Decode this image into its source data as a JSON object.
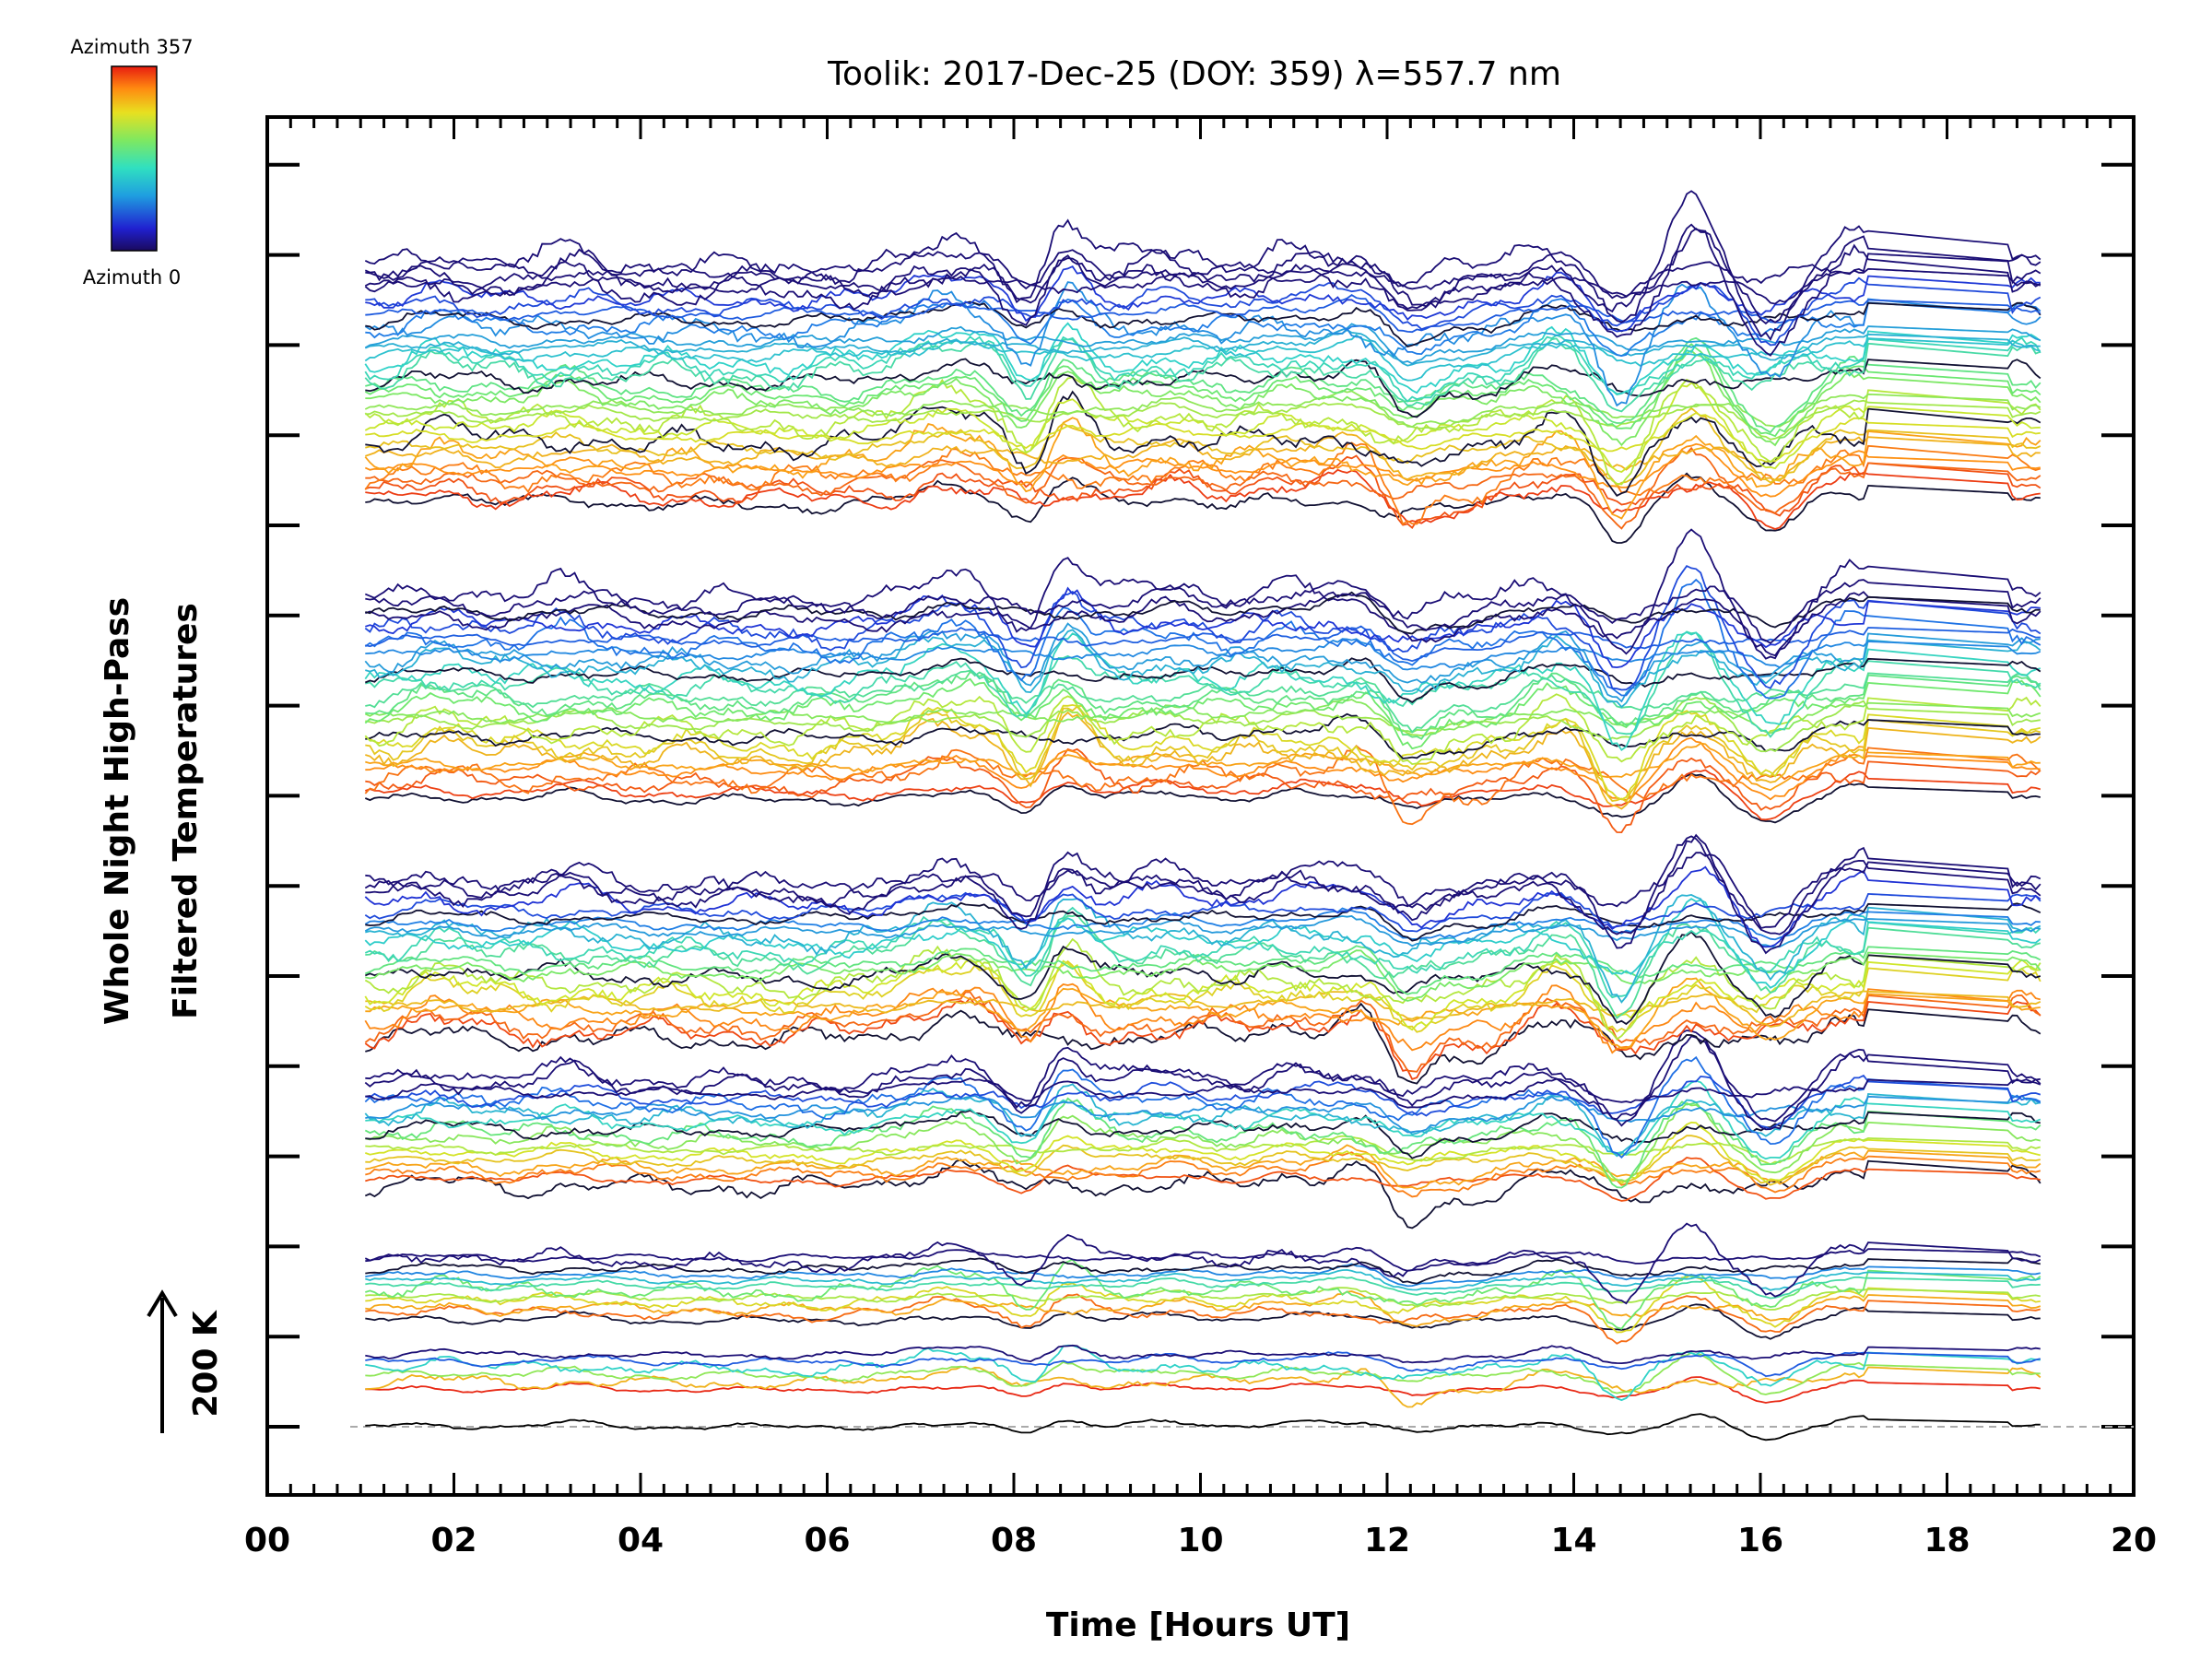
{
  "chart_data": {
    "type": "line",
    "title": "Toolik: 2017-Dec-25 (DOY: 359) λ=557.7 nm",
    "xlabel": "Time [Hours UT]",
    "ylabel_line1": "Whole Night High-Pass",
    "ylabel_line2": "Filtered Temperatures",
    "scale_label": "200 K",
    "xlim": [
      0,
      20
    ],
    "x_ticks": [
      {
        "value": 0,
        "label": "00"
      },
      {
        "value": 2,
        "label": "02"
      },
      {
        "value": 4,
        "label": "04"
      },
      {
        "value": 6,
        "label": "06"
      },
      {
        "value": 8,
        "label": "08"
      },
      {
        "value": 10,
        "label": "10"
      },
      {
        "value": 12,
        "label": "12"
      },
      {
        "value": 14,
        "label": "14"
      },
      {
        "value": 16,
        "label": "16"
      },
      {
        "value": 18,
        "label": "18"
      },
      {
        "value": 20,
        "label": "20"
      }
    ],
    "colorbar": {
      "top_label": "Azimuth 357",
      "bottom_label": "Azimuth 0",
      "colormap": "rainbow",
      "azimuth_range": [
        0,
        357
      ]
    },
    "data_span_hours": [
      1.05,
      19.0
    ],
    "groups": [
      {
        "traces": 1,
        "offset_rank": 0
      },
      {
        "traces": 6,
        "offset_rank": 1
      },
      {
        "traces": 12,
        "offset_rank": 2
      },
      {
        "traces": 18,
        "offset_rank": 3
      },
      {
        "traces": 24,
        "offset_rank": 4
      },
      {
        "traces": 30,
        "offset_rank": 5
      },
      {
        "traces": 36,
        "offset_rank": 6
      }
    ],
    "shared_features": [
      {
        "time": 1.8,
        "amplitude": 0.5
      },
      {
        "time": 3.3,
        "amplitude": 0.4
      },
      {
        "time": 7.2,
        "amplitude": 0.8
      },
      {
        "time": 7.7,
        "amplitude": 0.6
      },
      {
        "time": 8.2,
        "amplitude": -1.3
      },
      {
        "time": 8.5,
        "amplitude": 1.4
      },
      {
        "time": 9.7,
        "amplitude": 0.5
      },
      {
        "time": 10.9,
        "amplitude": 0.5
      },
      {
        "time": 11.7,
        "amplitude": 0.7
      },
      {
        "time": 12.2,
        "amplitude": -1.2
      },
      {
        "time": 12.7,
        "amplitude": -0.4
      },
      {
        "time": 13.8,
        "amplitude": 0.8
      },
      {
        "time": 14.5,
        "amplitude": -1.5
      },
      {
        "time": 15.3,
        "amplitude": 1.3
      },
      {
        "time": 16.1,
        "amplitude": -1.3
      },
      {
        "time": 17.0,
        "amplitude": 1.0
      },
      {
        "time": 18.8,
        "amplitude": 0.6
      }
    ]
  }
}
